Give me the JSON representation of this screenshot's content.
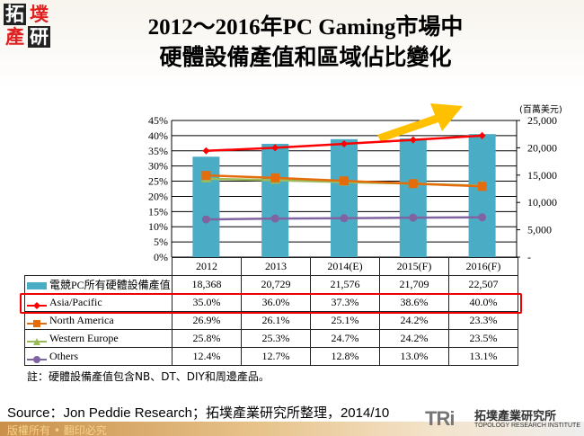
{
  "logo": {
    "chars": [
      "拓",
      "墣",
      "產",
      "研"
    ]
  },
  "title": {
    "line1": "2012～2016年PC Gaming市場中",
    "line2": "硬體設備產值和區域佔比變化"
  },
  "chart_data": {
    "type": "bar+line",
    "categories": [
      "2012",
      "2013",
      "2014(E)",
      "2015(F)",
      "2016(F)"
    ],
    "left_axis": {
      "ticks": [
        "0%",
        "5%",
        "10%",
        "15%",
        "20%",
        "25%",
        "30%",
        "35%",
        "40%",
        "45%"
      ],
      "range": [
        0,
        45
      ]
    },
    "right_axis": {
      "unit_label": "(百萬美元)",
      "ticks": [
        "-",
        "5,000",
        "10,000",
        "15,000",
        "20,000",
        "25,000"
      ],
      "range": [
        0,
        25000
      ]
    },
    "grid": true,
    "bar_series": {
      "name": "電競PC所有硬體設備產值",
      "values": [
        18368,
        20729,
        21576,
        21709,
        22507
      ],
      "display": [
        "18,368",
        "20,729",
        "21,576",
        "21,709",
        "22,507"
      ],
      "color": "#4bacc6"
    },
    "line_series": [
      {
        "name": "Asia/Pacific",
        "values": [
          35.0,
          36.0,
          37.3,
          38.6,
          40.0
        ],
        "display": [
          "35.0%",
          "36.0%",
          "37.3%",
          "38.6%",
          "40.0%"
        ],
        "color": "#ff0000",
        "marker": "diamond"
      },
      {
        "name": "North America",
        "values": [
          26.9,
          26.1,
          25.1,
          24.2,
          23.3
        ],
        "display": [
          "26.9%",
          "26.1%",
          "25.1%",
          "24.2%",
          "23.3%"
        ],
        "color": "#e46c0a",
        "marker": "square"
      },
      {
        "name": "Western Europe",
        "values": [
          25.8,
          25.3,
          24.7,
          24.2,
          23.5
        ],
        "display": [
          "25.8%",
          "25.3%",
          "24.7%",
          "24.2%",
          "23.5%"
        ],
        "color": "#9bbb59",
        "marker": "triangle"
      },
      {
        "name": "Others",
        "values": [
          12.4,
          12.7,
          12.8,
          13.0,
          13.1
        ],
        "display": [
          "12.4%",
          "12.7%",
          "12.8%",
          "13.0%",
          "13.1%"
        ],
        "color": "#8064a2",
        "marker": "circle"
      }
    ],
    "highlight_row": "Asia/Pacific",
    "arrow_color": "#ffc000"
  },
  "note": "註：硬體設備產值包含NB、DT、DIY和周邊產品。",
  "source": "Source：Jon  Peddie Research；拓墣產業研究所整理，2014/10",
  "footer": {
    "copyright": "版權所有 • 翻印必究",
    "tri_logo": "TRi",
    "tri_cn": "拓墣產業研究所",
    "tri_en": "TOPOLOGY RESEARCH INSTITUTE"
  }
}
